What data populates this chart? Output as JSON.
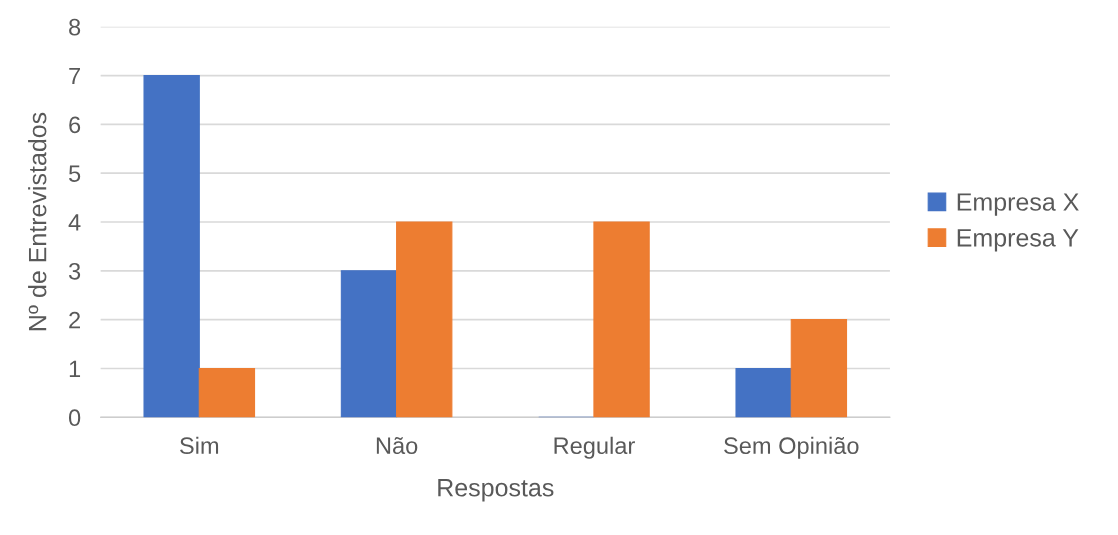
{
  "chart_data": {
    "type": "bar",
    "xlabel": "Respostas",
    "ylabel": "Nº de Entrevistados",
    "categories": [
      "Sim",
      "Não",
      "Regular",
      "Sem Opinião"
    ],
    "series": [
      {
        "name": "Empresa X",
        "color": "#4472c4",
        "values": [
          7,
          3,
          0,
          1
        ]
      },
      {
        "name": "Empresa Y",
        "color": "#ed7d31",
        "values": [
          1,
          4,
          4,
          2
        ]
      }
    ],
    "ylim": [
      0,
      8
    ],
    "yticks": [
      0,
      1,
      2,
      3,
      4,
      5,
      6,
      7,
      8
    ],
    "grid": "y",
    "legend": "right"
  }
}
